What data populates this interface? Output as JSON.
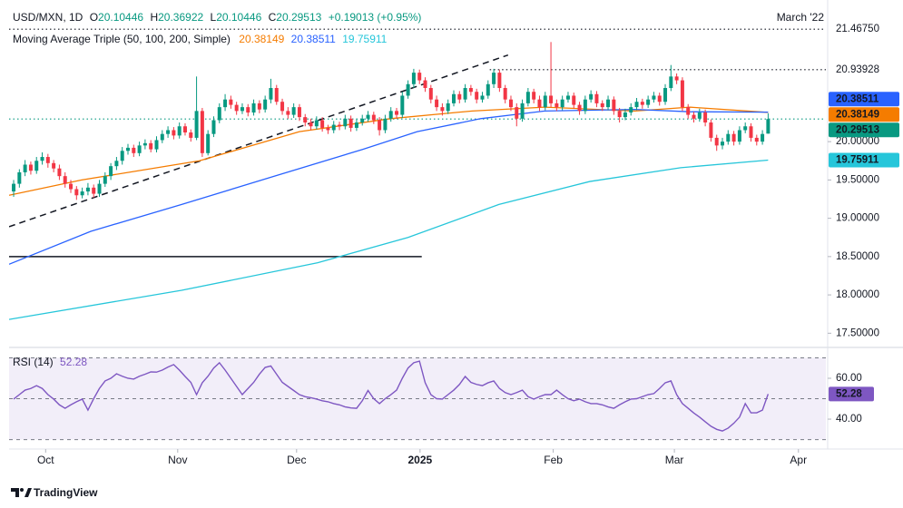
{
  "chart_data": {
    "type": "candlestick",
    "header": {
      "symbol": "USD/MXN, 1D",
      "ohlc": [
        {
          "key": "O",
          "value": "20.10446"
        },
        {
          "key": "H",
          "value": "20.36922"
        },
        {
          "key": "L",
          "value": "20.10446"
        },
        {
          "key": "C",
          "value": "20.29513"
        }
      ],
      "change": "+0.19013 (+0.95%)",
      "indicator": "Moving Average Triple (50, 100, 200, Simple)",
      "note": "March '22"
    },
    "up_color": "#089981",
    "down_color": "#f23645",
    "xlim": [
      -0.8,
      142.1
    ],
    "xticks": [
      {
        "value": 5.6,
        "label": "Oct"
      },
      {
        "value": 28.7,
        "label": "Nov"
      },
      {
        "value": 49.5,
        "label": "Dec"
      },
      {
        "value": 71.1,
        "label": "2025"
      },
      {
        "value": 94.4,
        "label": "Feb"
      },
      {
        "value": 115.6,
        "label": "Mar"
      },
      {
        "value": 137.3,
        "label": "Apr"
      }
    ],
    "ylim": [
      17.35,
      21.73
    ],
    "yticks": [
      {
        "value": 17.5,
        "label": "17.50000"
      },
      {
        "value": 18,
        "label": "18.00000"
      },
      {
        "value": 18.5,
        "label": "18.50000"
      },
      {
        "value": 19,
        "label": "19.00000"
      },
      {
        "value": 19.5,
        "label": "19.50000"
      },
      {
        "value": 20,
        "label": "20.00000"
      }
    ],
    "candles": [
      [
        19.35,
        19.5,
        19.28,
        19.45
      ],
      [
        19.45,
        19.64,
        19.4,
        19.6
      ],
      [
        19.6,
        19.76,
        19.55,
        19.7
      ],
      [
        19.7,
        19.74,
        19.57,
        19.62
      ],
      [
        19.62,
        19.8,
        19.58,
        19.75
      ],
      [
        19.75,
        19.86,
        19.7,
        19.8
      ],
      [
        19.8,
        19.84,
        19.66,
        19.72
      ],
      [
        19.72,
        19.76,
        19.6,
        19.65
      ],
      [
        19.65,
        19.7,
        19.5,
        19.55
      ],
      [
        19.55,
        19.6,
        19.4,
        19.45
      ],
      [
        19.45,
        19.5,
        19.33,
        19.38
      ],
      [
        19.38,
        19.42,
        19.24,
        19.3
      ],
      [
        19.3,
        19.4,
        19.26,
        19.35
      ],
      [
        19.35,
        19.46,
        19.3,
        19.4
      ],
      [
        19.4,
        19.44,
        19.27,
        19.32
      ],
      [
        19.32,
        19.5,
        19.28,
        19.45
      ],
      [
        19.45,
        19.6,
        19.41,
        19.55
      ],
      [
        19.55,
        19.72,
        19.5,
        19.68
      ],
      [
        19.68,
        19.8,
        19.63,
        19.75
      ],
      [
        19.75,
        19.93,
        19.7,
        19.88
      ],
      [
        19.88,
        19.97,
        19.83,
        19.92
      ],
      [
        19.92,
        19.96,
        19.8,
        19.85
      ],
      [
        19.85,
        20.0,
        19.81,
        19.95
      ],
      [
        19.95,
        20.03,
        19.9,
        19.98
      ],
      [
        19.98,
        20.02,
        19.86,
        19.9
      ],
      [
        19.9,
        20.07,
        19.86,
        20.02
      ],
      [
        20.02,
        20.15,
        19.98,
        20.1
      ],
      [
        20.1,
        20.2,
        20.05,
        20.15
      ],
      [
        20.15,
        20.19,
        20.03,
        20.08
      ],
      [
        20.08,
        20.25,
        20.04,
        20.2
      ],
      [
        20.2,
        20.24,
        20.08,
        20.12
      ],
      [
        20.12,
        20.16,
        20.0,
        20.05
      ],
      [
        20.05,
        20.85,
        20.02,
        20.4
      ],
      [
        20.4,
        20.44,
        19.8,
        19.85
      ],
      [
        19.85,
        20.15,
        19.82,
        20.1
      ],
      [
        20.1,
        20.33,
        20.06,
        20.28
      ],
      [
        20.28,
        20.5,
        20.24,
        20.45
      ],
      [
        20.45,
        20.62,
        20.4,
        20.55
      ],
      [
        20.55,
        20.6,
        20.43,
        20.48
      ],
      [
        20.48,
        20.52,
        20.35,
        20.4
      ],
      [
        20.4,
        20.5,
        20.36,
        20.45
      ],
      [
        20.45,
        20.49,
        20.33,
        20.38
      ],
      [
        20.38,
        20.55,
        20.34,
        20.5
      ],
      [
        20.5,
        20.54,
        20.37,
        20.42
      ],
      [
        20.42,
        20.6,
        20.38,
        20.55
      ],
      [
        20.55,
        20.82,
        20.5,
        20.7
      ],
      [
        20.7,
        20.74,
        20.48,
        20.52
      ],
      [
        20.52,
        20.56,
        20.35,
        20.4
      ],
      [
        20.4,
        20.45,
        20.3,
        20.35
      ],
      [
        20.35,
        20.5,
        20.31,
        20.45
      ],
      [
        20.45,
        20.49,
        20.27,
        20.32
      ],
      [
        20.32,
        20.36,
        20.2,
        20.25
      ],
      [
        20.25,
        20.3,
        20.15,
        20.2
      ],
      [
        20.2,
        20.33,
        20.16,
        20.28
      ],
      [
        20.28,
        20.32,
        20.13,
        20.18
      ],
      [
        20.18,
        20.22,
        20.1,
        20.15
      ],
      [
        20.15,
        20.27,
        20.11,
        20.22
      ],
      [
        20.22,
        20.26,
        20.15,
        20.2
      ],
      [
        20.2,
        20.35,
        20.16,
        20.3
      ],
      [
        20.3,
        20.34,
        20.13,
        20.18
      ],
      [
        20.18,
        20.3,
        20.14,
        20.25
      ],
      [
        20.25,
        20.35,
        20.21,
        20.3
      ],
      [
        20.3,
        20.4,
        20.26,
        20.35
      ],
      [
        20.35,
        20.39,
        20.23,
        20.28
      ],
      [
        20.28,
        20.32,
        20.08,
        20.15
      ],
      [
        20.15,
        20.35,
        20.11,
        20.3
      ],
      [
        20.3,
        20.45,
        20.26,
        20.4
      ],
      [
        20.4,
        20.44,
        20.3,
        20.35
      ],
      [
        20.35,
        20.65,
        20.31,
        20.6
      ],
      [
        20.6,
        20.8,
        20.56,
        20.75
      ],
      [
        20.75,
        20.95,
        20.7,
        20.9
      ],
      [
        20.9,
        20.94,
        20.75,
        20.8
      ],
      [
        20.8,
        20.84,
        20.65,
        20.7
      ],
      [
        20.7,
        20.74,
        20.5,
        20.55
      ],
      [
        20.55,
        20.6,
        20.4,
        20.45
      ],
      [
        20.45,
        20.5,
        20.34,
        20.4
      ],
      [
        20.4,
        20.55,
        20.36,
        20.5
      ],
      [
        20.5,
        20.67,
        20.46,
        20.62
      ],
      [
        20.62,
        20.66,
        20.5,
        20.55
      ],
      [
        20.55,
        20.75,
        20.51,
        20.7
      ],
      [
        20.7,
        20.74,
        20.6,
        20.65
      ],
      [
        20.65,
        20.69,
        20.5,
        20.55
      ],
      [
        20.55,
        20.65,
        20.51,
        20.6
      ],
      [
        20.6,
        20.8,
        20.56,
        20.75
      ],
      [
        20.75,
        20.95,
        20.7,
        20.9
      ],
      [
        20.9,
        20.94,
        20.65,
        20.7
      ],
      [
        20.7,
        20.74,
        20.5,
        20.55
      ],
      [
        20.55,
        20.6,
        20.4,
        20.45
      ],
      [
        20.45,
        20.5,
        20.2,
        20.3
      ],
      [
        20.3,
        20.55,
        20.26,
        20.5
      ],
      [
        20.5,
        20.7,
        20.46,
        20.65
      ],
      [
        20.65,
        20.69,
        20.5,
        20.55
      ],
      [
        20.55,
        20.6,
        20.4,
        20.45
      ],
      [
        20.45,
        20.65,
        20.41,
        20.6
      ],
      [
        20.6,
        21.3,
        20.45,
        20.5
      ],
      [
        20.5,
        20.55,
        20.4,
        20.45
      ],
      [
        20.45,
        20.6,
        20.41,
        20.55
      ],
      [
        20.55,
        20.65,
        20.51,
        20.6
      ],
      [
        20.6,
        20.64,
        20.43,
        20.48
      ],
      [
        20.48,
        20.52,
        20.35,
        20.4
      ],
      [
        20.4,
        20.6,
        20.36,
        20.55
      ],
      [
        20.55,
        20.67,
        20.51,
        20.62
      ],
      [
        20.62,
        20.66,
        20.45,
        20.5
      ],
      [
        20.5,
        20.54,
        20.4,
        20.45
      ],
      [
        20.45,
        20.6,
        20.41,
        20.55
      ],
      [
        20.55,
        20.59,
        20.35,
        20.4
      ],
      [
        20.4,
        20.44,
        20.25,
        20.32
      ],
      [
        20.32,
        20.43,
        20.28,
        20.38
      ],
      [
        20.38,
        20.5,
        20.34,
        20.45
      ],
      [
        20.45,
        20.57,
        20.41,
        20.52
      ],
      [
        20.52,
        20.56,
        20.43,
        20.48
      ],
      [
        20.48,
        20.6,
        20.44,
        20.55
      ],
      [
        20.55,
        20.65,
        20.51,
        20.6
      ],
      [
        20.6,
        20.64,
        20.47,
        20.52
      ],
      [
        20.52,
        20.75,
        20.48,
        20.7
      ],
      [
        20.7,
        21.0,
        20.66,
        20.85
      ],
      [
        20.85,
        20.89,
        20.75,
        20.8
      ],
      [
        20.8,
        20.84,
        20.4,
        20.45
      ],
      [
        20.45,
        20.49,
        20.3,
        20.35
      ],
      [
        20.35,
        20.39,
        20.25,
        20.3
      ],
      [
        20.3,
        20.43,
        20.26,
        20.38
      ],
      [
        20.38,
        20.42,
        20.2,
        20.25
      ],
      [
        20.25,
        20.29,
        20.0,
        20.05
      ],
      [
        20.05,
        20.09,
        19.88,
        19.95
      ],
      [
        19.95,
        20.05,
        19.9,
        20.0
      ],
      [
        20.0,
        20.15,
        19.96,
        20.1
      ],
      [
        20.1,
        20.14,
        19.95,
        20.0
      ],
      [
        20.0,
        20.2,
        19.96,
        20.15
      ],
      [
        20.15,
        20.25,
        20.11,
        20.2
      ],
      [
        20.2,
        20.24,
        20.0,
        20.05
      ],
      [
        20.05,
        20.09,
        19.95,
        20.0
      ],
      [
        20.0,
        20.15,
        19.96,
        20.1
      ],
      [
        20.10446,
        20.36922,
        20.10446,
        20.29513
      ]
    ],
    "series": [
      {
        "color": "#f57c00",
        "x": [
          -0.8,
          11.9,
          32.5,
          50,
          65.9,
          80.2,
          92.9,
          108.7,
          118.3,
          132
        ],
        "values": [
          19.3,
          19.5,
          19.75,
          20.13,
          20.3,
          20.4,
          20.45,
          20.4,
          20.45,
          20.38149
        ]
      },
      {
        "color": "#2962ff",
        "x": [
          -0.8,
          13.5,
          29.4,
          45.2,
          61.1,
          70.6,
          81.7,
          92.9,
          108.7,
          118.3,
          132
        ],
        "values": [
          18.4,
          18.83,
          19.18,
          19.54,
          19.9,
          20.13,
          20.3,
          20.4,
          20.42,
          20.39,
          20.38511
        ]
      },
      {
        "color": "#26c6da",
        "x": [
          -0.8,
          29.4,
          53.2,
          69,
          84.9,
          100.8,
          116.7,
          132
        ],
        "values": [
          17.68,
          18.06,
          18.42,
          18.75,
          19.18,
          19.48,
          19.66,
          19.75911
        ]
      }
    ],
    "levels": [
      {
        "value": 21.4675,
        "style": "dotted",
        "color": "#131722",
        "x": [
          -0.8,
          142.1
        ]
      },
      {
        "value": 20.93928,
        "style": "dotted",
        "color": "#131722",
        "x": [
          83.3,
          142.1
        ]
      },
      {
        "value": 20.29513,
        "style": "dotted",
        "color": "#089981",
        "x": [
          -0.8,
          142.1
        ]
      },
      {
        "value": 18.5,
        "style": "solid",
        "color": "#131722",
        "x": [
          -0.8,
          71.4
        ]
      }
    ],
    "trendlines": [
      {
        "x": [
          -0.8,
          86.5
        ],
        "values": [
          18.89,
          21.13
        ],
        "style": "dashed",
        "color": "#131722"
      }
    ],
    "price_tags": [
      {
        "value": 21.4675,
        "label": "21.46750"
      },
      {
        "value": 20.93928,
        "label": "20.93928"
      },
      {
        "value": 20.38511,
        "label": "20.38511",
        "color": "#2962ff"
      },
      {
        "value": 20.38149,
        "label": "20.38149",
        "color": "#f57c00"
      },
      {
        "value": 20.29513,
        "label": "20.29513",
        "color": "#089981"
      },
      {
        "value": 19.75911,
        "label": "19.75911",
        "color": "#26c6da"
      }
    ],
    "rsi": {
      "title": "RSI (14)",
      "value_label": "52.28",
      "color": "#7e57c2",
      "ylim": [
        26.7,
        74.2
      ],
      "yticks": [
        {
          "value": 60,
          "label": "60.00"
        },
        {
          "value": 40,
          "label": "40.00"
        }
      ],
      "levels": [
        70,
        50,
        30
      ],
      "values": [
        49.8,
        52,
        54.2,
        55,
        56.4,
        55,
        52,
        49.8,
        47,
        45.3,
        47,
        48.5,
        49.8,
        44.4,
        50,
        55,
        58.7,
        60,
        62.2,
        61,
        60,
        59.6,
        61,
        62,
        63.1,
        63,
        64,
        65.5,
        66.7,
        64,
        60.9,
        58,
        52,
        57.8,
        61,
        65,
        67.6,
        64,
        60,
        56,
        52,
        55,
        58,
        62,
        65.3,
        66,
        62,
        58,
        56,
        54,
        52,
        51,
        50.5,
        49.8,
        49,
        48.5,
        47.6,
        47,
        46,
        45.5,
        45.3,
        49,
        54,
        50,
        47.6,
        50,
        52,
        54.2,
        60,
        65,
        67.6,
        68.4,
        57.8,
        52,
        50,
        49.8,
        52,
        54.2,
        57,
        60.9,
        58,
        57,
        56.4,
        57.8,
        58.7,
        55,
        53,
        52,
        53,
        54.2,
        51,
        49.8,
        51,
        52,
        52,
        54.2,
        52,
        50,
        49,
        49.8,
        48.5,
        47.6,
        47.6,
        47,
        46,
        45.3,
        47,
        48.5,
        49.8,
        50,
        51,
        52,
        52.5,
        55,
        57.8,
        58.7,
        52,
        47.6,
        45.3,
        43,
        41,
        38.7,
        36.5,
        35,
        34.2,
        35.6,
        38,
        41,
        47.6,
        43.1,
        43.1,
        44.4,
        52.28
      ]
    },
    "footer": "TradingView"
  }
}
